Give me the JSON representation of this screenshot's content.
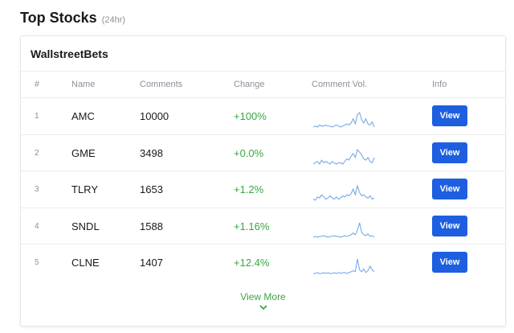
{
  "heading": {
    "title": "Top Stocks",
    "subtitle": "(24hr)"
  },
  "card": {
    "title": "WallstreetBets",
    "columns": [
      "#",
      "Name",
      "Comments",
      "Change",
      "Comment Vol.",
      "Info"
    ],
    "rows": [
      {
        "rank": "1",
        "name": "AMC",
        "comments": "10000",
        "change": "+100%",
        "info_label": "View",
        "volume_trend": [
          10,
          11,
          10,
          12,
          11,
          11,
          12,
          11,
          11,
          10,
          11,
          12,
          11,
          10,
          11,
          12,
          13,
          12,
          14,
          18,
          13,
          22,
          24,
          17,
          14,
          18,
          13,
          12,
          15,
          10
        ]
      },
      {
        "rank": "2",
        "name": "GME",
        "comments": "3498",
        "change": "+0.0%",
        "info_label": "View",
        "volume_trend": [
          11,
          12,
          13,
          11,
          14,
          12,
          13,
          12,
          11,
          13,
          12,
          11,
          12,
          12,
          11,
          13,
          15,
          14,
          17,
          19,
          16,
          22,
          20,
          18,
          15,
          14,
          16,
          13,
          12,
          16
        ]
      },
      {
        "rank": "3",
        "name": "TLRY",
        "comments": "1653",
        "change": "+1.2%",
        "info_label": "View",
        "volume_trend": [
          12,
          11,
          14,
          13,
          16,
          14,
          12,
          13,
          15,
          13,
          12,
          14,
          12,
          13,
          15,
          14,
          16,
          15,
          17,
          21,
          16,
          24,
          18,
          15,
          16,
          14,
          13,
          15,
          12,
          13
        ]
      },
      {
        "rank": "4",
        "name": "SNDL",
        "comments": "1588",
        "change": "+1.16%",
        "info_label": "View",
        "volume_trend": [
          10,
          11,
          10,
          11,
          11,
          12,
          11,
          10,
          11,
          11,
          12,
          11,
          11,
          10,
          11,
          12,
          11,
          12,
          13,
          15,
          13,
          18,
          27,
          16,
          13,
          12,
          14,
          11,
          12,
          10
        ]
      },
      {
        "rank": "5",
        "name": "CLNE",
        "comments": "1407",
        "change": "+12.4%",
        "info_label": "View",
        "volume_trend": [
          10,
          10,
          11,
          10,
          10,
          11,
          10,
          11,
          10,
          10,
          11,
          10,
          11,
          10,
          11,
          11,
          10,
          11,
          12,
          13,
          12,
          26,
          14,
          12,
          15,
          11,
          13,
          18,
          14,
          12
        ]
      }
    ]
  },
  "view_more": {
    "label": "View More",
    "icon": "chevron-down-icon"
  },
  "colors": {
    "positive": "#3aa640",
    "button": "#1d5fe0",
    "sparkline": "#6aa3e8"
  }
}
